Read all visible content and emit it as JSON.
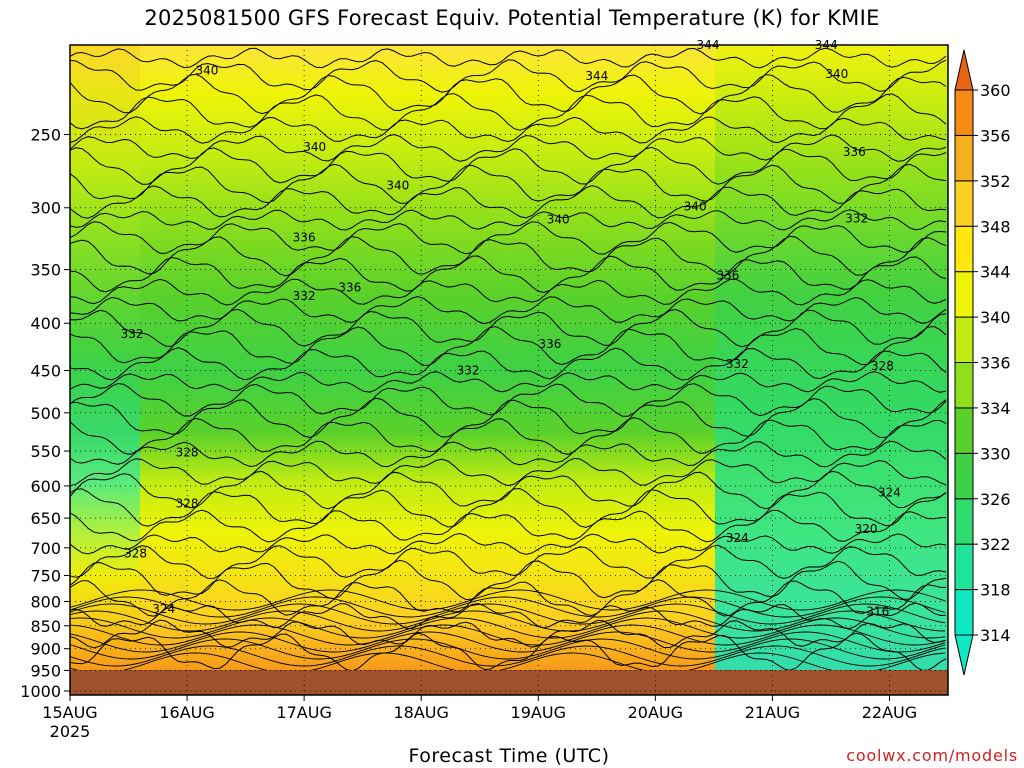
{
  "title": "2025081500 GFS Forecast Equiv. Potential Temperature (K) for KMIE",
  "x_axis_title": "Forecast Time (UTC)",
  "credit": "coolwx.com/models",
  "chart_data": {
    "type": "heatmap",
    "title": "2025081500 GFS Forecast Equiv. Potential Temperature (K) for KMIE",
    "xlabel": "Forecast Time (UTC)",
    "ylabel": "",
    "x_ticks": [
      "15AUG",
      "16AUG",
      "17AUG",
      "18AUG",
      "19AUG",
      "20AUG",
      "21AUG",
      "22AUG"
    ],
    "x_year_label": "2025",
    "x_days_range": [
      0,
      7.5
    ],
    "y_ticks": [
      250,
      300,
      350,
      400,
      450,
      500,
      550,
      600,
      650,
      700,
      750,
      800,
      850,
      900,
      950,
      1000
    ],
    "y_range_hPa": [
      200,
      1010
    ],
    "y_scale": "log",
    "grid": true,
    "colorbar": {
      "levels": [
        314,
        318,
        322,
        326,
        330,
        334,
        336,
        340,
        344,
        348,
        352,
        356,
        360
      ],
      "colors": [
        "#11e8c4",
        "#1fe49b",
        "#2edc6e",
        "#3ed145",
        "#5ad12b",
        "#8edf1c",
        "#c2ec12",
        "#eef408",
        "#ffe810",
        "#fcd022",
        "#f7b01f",
        "#f58a15",
        "#e86410"
      ]
    },
    "contour_labels": [
      {
        "label": "340",
        "day": 1.17,
        "p": 213
      },
      {
        "label": "340",
        "day": 2.09,
        "p": 258
      },
      {
        "label": "340",
        "day": 2.8,
        "p": 284
      },
      {
        "label": "340",
        "day": 4.17,
        "p": 309
      },
      {
        "label": "340",
        "day": 5.34,
        "p": 299
      },
      {
        "label": "340",
        "day": 6.55,
        "p": 215
      },
      {
        "label": "344",
        "day": 4.5,
        "p": 216
      },
      {
        "label": "344",
        "day": 5.45,
        "p": 200
      },
      {
        "label": "344",
        "day": 6.46,
        "p": 200
      },
      {
        "label": "336",
        "day": 2.0,
        "p": 323
      },
      {
        "label": "336",
        "day": 2.39,
        "p": 366
      },
      {
        "label": "336",
        "day": 4.1,
        "p": 421
      },
      {
        "label": "336",
        "day": 5.62,
        "p": 355
      },
      {
        "label": "336",
        "day": 6.7,
        "p": 261
      },
      {
        "label": "332",
        "day": 2.0,
        "p": 374
      },
      {
        "label": "332",
        "day": 0.53,
        "p": 411
      },
      {
        "label": "332",
        "day": 3.4,
        "p": 450
      },
      {
        "label": "332",
        "day": 6.72,
        "p": 308
      },
      {
        "label": "332",
        "day": 5.7,
        "p": 443
      },
      {
        "label": "328",
        "day": 1.0,
        "p": 552
      },
      {
        "label": "328",
        "day": 1.0,
        "p": 627
      },
      {
        "label": "328",
        "day": 0.56,
        "p": 710
      },
      {
        "label": "328",
        "day": 6.94,
        "p": 445
      },
      {
        "label": "324",
        "day": 7.0,
        "p": 610
      },
      {
        "label": "324",
        "day": 5.7,
        "p": 683
      },
      {
        "label": "320",
        "day": 6.8,
        "p": 668
      },
      {
        "label": "316",
        "day": 6.9,
        "p": 820
      },
      {
        "label": "324",
        "day": 0.8,
        "p": 815
      }
    ]
  }
}
